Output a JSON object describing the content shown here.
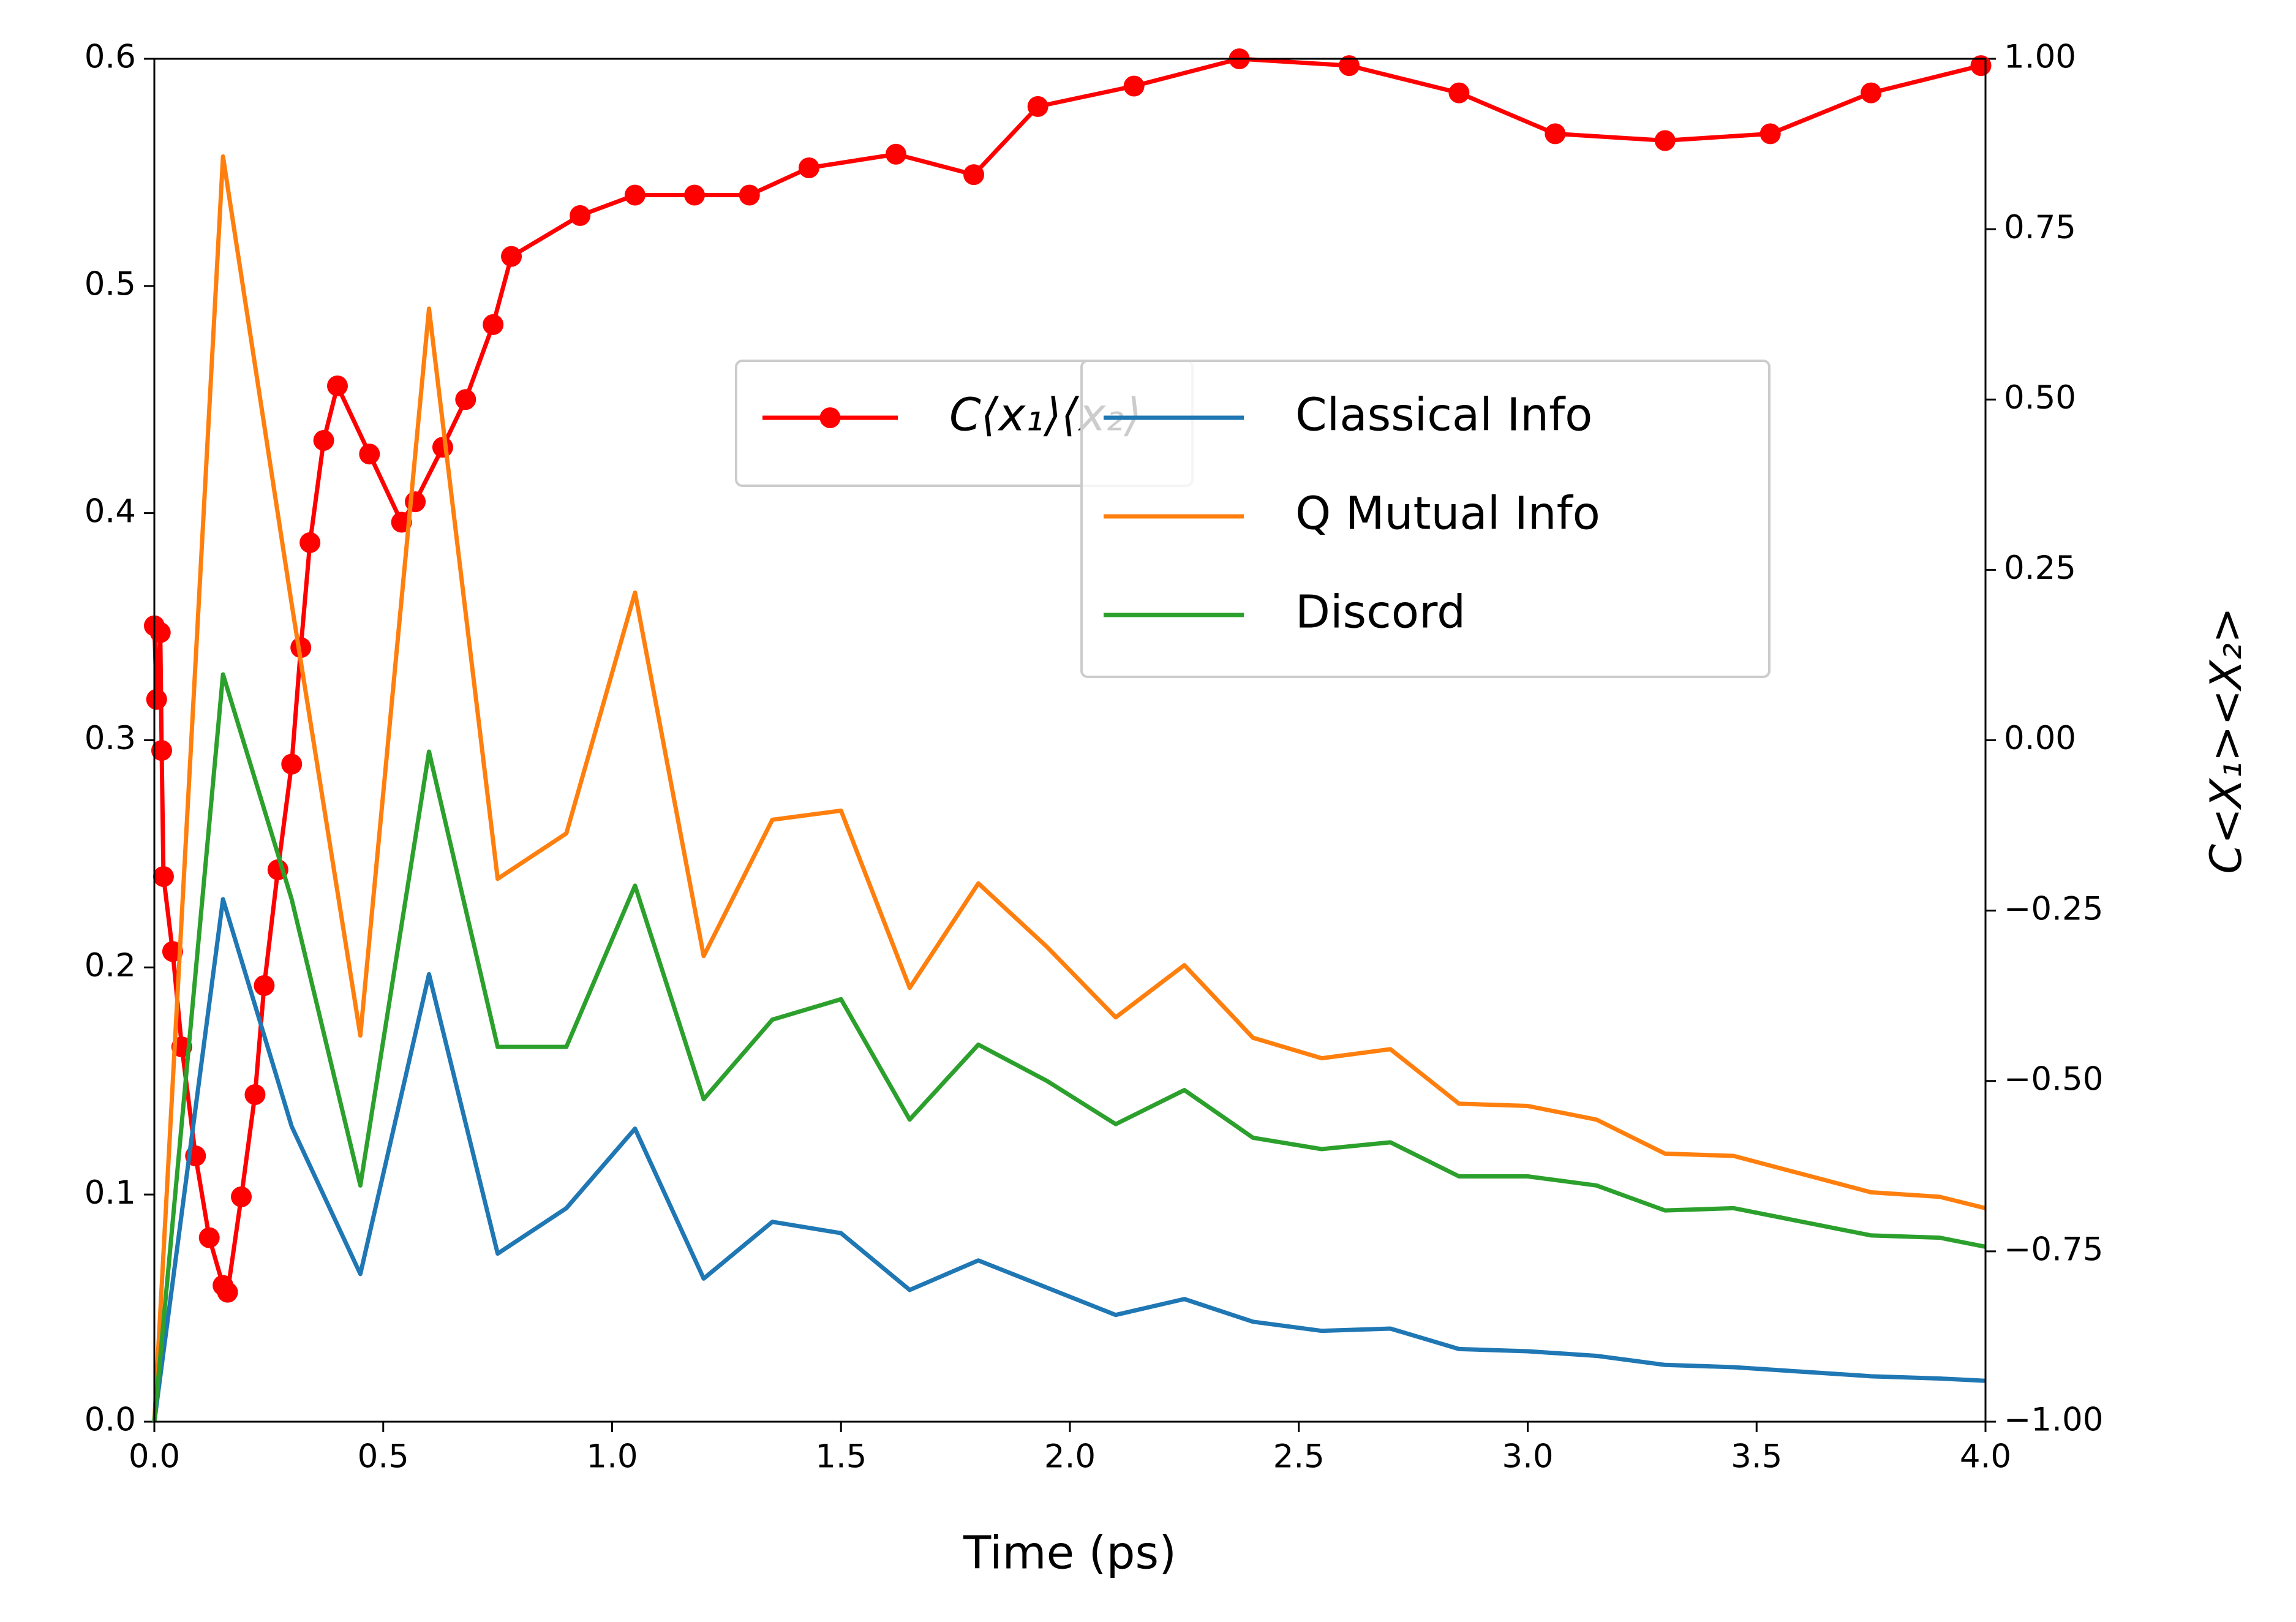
{
  "chart_data": {
    "type": "line",
    "xlabel": "Time (ps)",
    "y2label": "C<X₁><X₂>",
    "x": [
      0,
      0.15,
      0.3,
      0.45,
      0.6,
      0.75,
      0.9,
      1.05,
      1.2,
      1.35,
      1.5,
      1.65,
      1.8,
      1.95,
      2.1,
      2.25,
      2.4,
      2.55,
      2.7,
      2.85,
      3.0,
      3.15,
      3.3,
      3.45,
      3.6,
      3.75,
      3.9,
      4.0
    ],
    "xlim": [
      0,
      4
    ],
    "xticks": [
      {
        "value": 0,
        "label": "0.0"
      },
      0.5,
      {
        "value": 1,
        "label": "1.0"
      },
      1.5,
      {
        "value": 2,
        "label": "2.0"
      },
      2.5,
      {
        "value": 3,
        "label": "3.0"
      },
      3.5,
      {
        "value": 4,
        "label": "4.0"
      }
    ],
    "ylim": [
      0,
      0.6
    ],
    "yticks": [
      {
        "value": 0,
        "label": "0.0"
      },
      0.1,
      0.2,
      0.3,
      0.4,
      0.5,
      0.6
    ],
    "y2lim": [
      -1,
      1
    ],
    "y2ticks": [
      {
        "value": -1,
        "label": "−1.00"
      },
      {
        "value": -0.75,
        "label": "−0.75"
      },
      {
        "value": -0.5,
        "label": "−0.50"
      },
      {
        "value": -0.25,
        "label": "−0.25"
      },
      {
        "value": 0,
        "label": "0.00"
      },
      0.25,
      {
        "value": 0.5,
        "label": "0.50"
      },
      0.75,
      {
        "value": 1,
        "label": "1.00"
      }
    ],
    "series": [
      {
        "name": "C⟨x₁⟩⟨x₂⟩",
        "color": "#ff0000",
        "axis": "y2",
        "marker": "o",
        "x": [
          0,
          0.005,
          0.013,
          0.016,
          0.02,
          0.04,
          0.06,
          0.09,
          0.12,
          0.15,
          0.16,
          0.19,
          0.22,
          0.24,
          0.27,
          0.3,
          0.32,
          0.34,
          0.37,
          0.4,
          0.47,
          0.54,
          0.57,
          0.63,
          0.68,
          0.74,
          0.78,
          0.93,
          1.05,
          1.18,
          1.3,
          1.43,
          1.62,
          1.79,
          1.93,
          2.14,
          2.37,
          2.61,
          2.85,
          3.06,
          3.3,
          3.53,
          3.75,
          3.99
        ],
        "values": [
          0.168,
          0.06,
          0.158,
          -0.015,
          -0.2,
          -0.31,
          -0.45,
          -0.61,
          -0.73,
          -0.8,
          -0.81,
          -0.67,
          -0.52,
          -0.36,
          -0.19,
          -0.035,
          0.136,
          0.29,
          0.44,
          0.52,
          0.42,
          0.32,
          0.35,
          0.43,
          0.5,
          0.61,
          0.71,
          0.77,
          0.8,
          0.8,
          0.8,
          0.84,
          0.86,
          0.83,
          0.93,
          0.96,
          1.0,
          0.99,
          0.95,
          0.89,
          0.88,
          0.89,
          0.95,
          0.99
        ]
      },
      {
        "name": "Classical Info",
        "color": "#1f77b4",
        "values": [
          0,
          0.23,
          0.13,
          0.065,
          0.197,
          0.074,
          0.094,
          0.129,
          0.063,
          0.088,
          0.083,
          0.058,
          0.071,
          0.059,
          0.047,
          0.054,
          0.044,
          0.04,
          0.041,
          0.032,
          0.031,
          0.029,
          0.025,
          0.024,
          0.022,
          0.02,
          0.019,
          0.018
        ]
      },
      {
        "name": "Q Mutual Info",
        "color": "#ff7f0e",
        "values": [
          0,
          0.557,
          0.36,
          0.17,
          0.49,
          0.239,
          0.259,
          0.365,
          0.205,
          0.265,
          0.269,
          0.191,
          0.237,
          0.209,
          0.178,
          0.201,
          0.169,
          0.16,
          0.164,
          0.14,
          0.139,
          0.133,
          0.118,
          0.117,
          0.109,
          0.101,
          0.099,
          0.094
        ]
      },
      {
        "name": "Discord",
        "color": "#2ca02c",
        "values": [
          0,
          0.329,
          0.23,
          0.104,
          0.295,
          0.165,
          0.165,
          0.236,
          0.142,
          0.177,
          0.186,
          0.133,
          0.166,
          0.15,
          0.131,
          0.146,
          0.125,
          0.12,
          0.123,
          0.108,
          0.108,
          0.104,
          0.093,
          0.094,
          0.088,
          0.082,
          0.081,
          0.077
        ]
      }
    ]
  }
}
